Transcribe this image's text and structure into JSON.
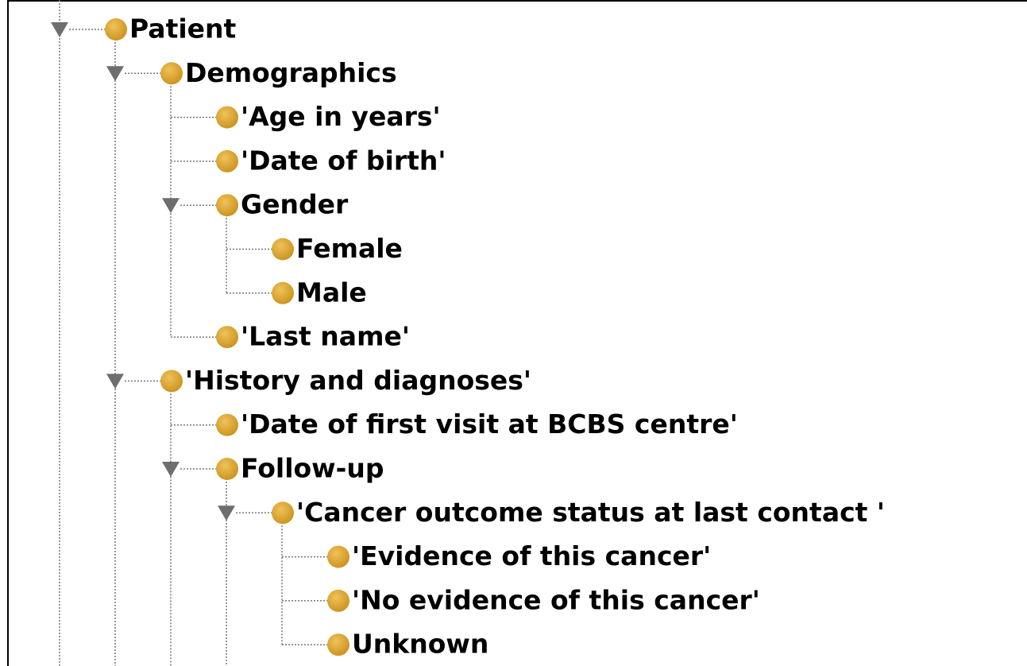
{
  "tree": {
    "label": "Patient",
    "children": [
      {
        "label": "Demographics",
        "children": [
          {
            "label": "'Age in years'"
          },
          {
            "label": "'Date of birth'"
          },
          {
            "label": "Gender",
            "children": [
              {
                "label": "Female"
              },
              {
                "label": "Male"
              }
            ]
          },
          {
            "label": "'Last name'"
          }
        ]
      },
      {
        "label": "'History and diagnoses'",
        "children": [
          {
            "label": "'Date of first visit at BCBS centre'"
          },
          {
            "label": "Follow-up",
            "children": [
              {
                "label": "'Cancer outcome status at last contact '",
                "children": [
                  {
                    "label": "'Evidence of this cancer'"
                  },
                  {
                    "label": "'No evidence of this cancer'"
                  },
                  {
                    "label": "Unknown"
                  }
                ]
              }
            ]
          }
        ]
      }
    ]
  }
}
